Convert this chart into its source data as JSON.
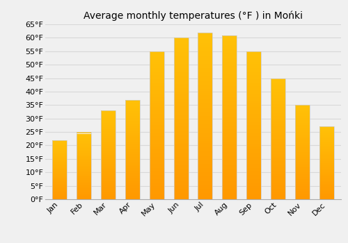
{
  "title": "Average monthly temperatures (°F ) in Mońki",
  "months": [
    "Jan",
    "Feb",
    "Mar",
    "Apr",
    "May",
    "Jun",
    "Jul",
    "Aug",
    "Sep",
    "Oct",
    "Nov",
    "Dec"
  ],
  "values": [
    22,
    25,
    33,
    37,
    55,
    60,
    62,
    61,
    55,
    45,
    35,
    27
  ],
  "ylim": [
    0,
    65
  ],
  "yticks": [
    0,
    5,
    10,
    15,
    20,
    25,
    30,
    35,
    40,
    45,
    50,
    55,
    60,
    65
  ],
  "bar_color_top": "#FFC107",
  "bar_color_bottom": "#FF9800",
  "background_color": "#f0f0f0",
  "grid_color": "#d8d8d8",
  "title_fontsize": 10,
  "tick_fontsize": 8,
  "bar_width": 0.6,
  "bar_edge_color": "#cccccc",
  "bar_edge_linewidth": 0.5
}
